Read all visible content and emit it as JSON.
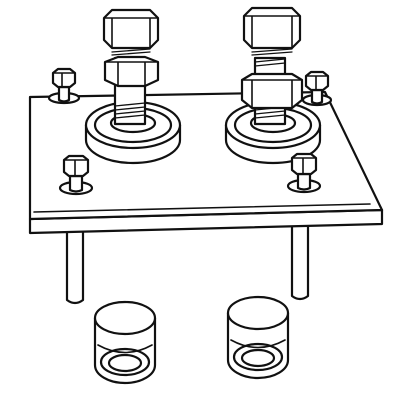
{
  "diagram": {
    "colors": {
      "line": "#111111",
      "fill": "#ffffff",
      "background": "#ffffff"
    },
    "parts": [
      "base-plate",
      "support-leg-left",
      "support-leg-right",
      "spacer-sleeve-left",
      "spacer-sleeve-right",
      "hex-bolt-left",
      "hex-bolt-right",
      "bearing-washer-left",
      "bearing-washer-right",
      "corner-screw-back-left",
      "corner-screw-back-right",
      "corner-screw-front-left",
      "corner-screw-front-right"
    ]
  }
}
